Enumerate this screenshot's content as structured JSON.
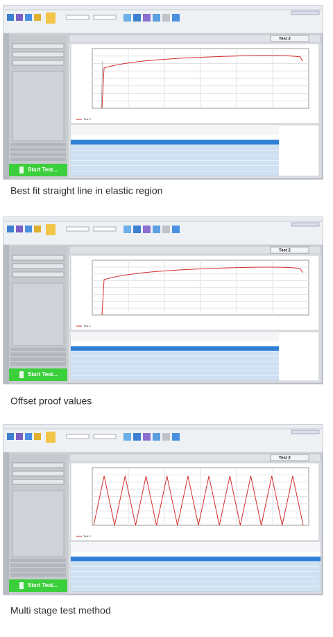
{
  "panels": [
    {
      "start_button": "Start Test...",
      "test_label": "Test 2",
      "caption": "Best fit straight line in elastic region"
    },
    {
      "start_button": "Start Test...",
      "test_label": "Test 2",
      "caption": "Offset proof values"
    },
    {
      "start_button": "Start Test...",
      "test_label": "Test 2",
      "caption": "Multi stage test method"
    }
  ]
}
